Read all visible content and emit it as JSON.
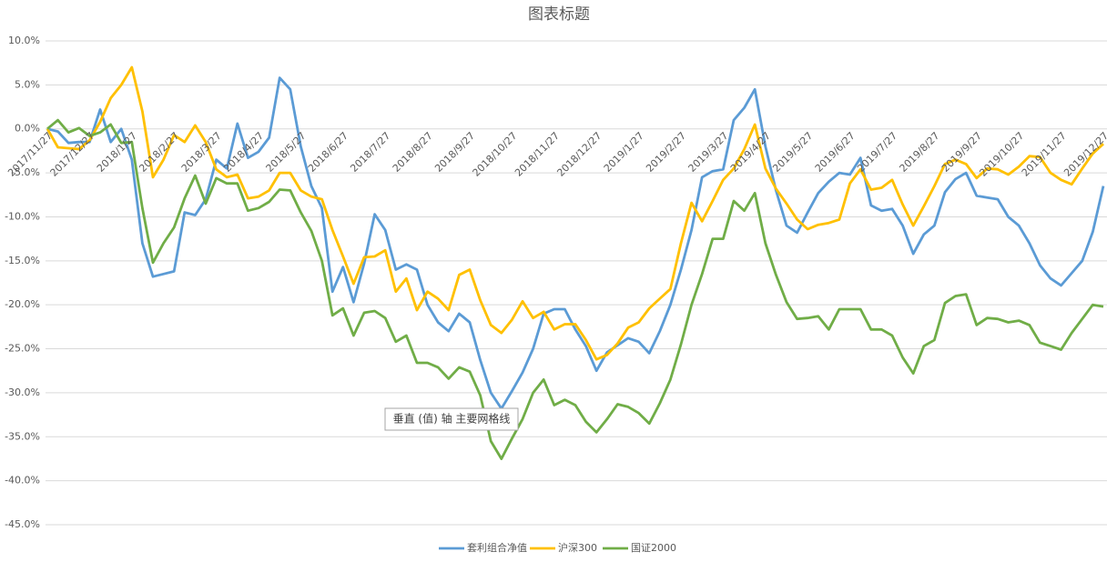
{
  "chart_data": {
    "type": "line",
    "title": "图表标题",
    "annotation": "垂直 (值) 轴 主要网格线",
    "categories": [
      "2017/11/27",
      null,
      null,
      null,
      "2017/12/27",
      null,
      null,
      null,
      "2018/1/27",
      null,
      null,
      null,
      "2018/2/27",
      null,
      null,
      null,
      "2018/3/27",
      null,
      null,
      null,
      "2018/4/27",
      null,
      null,
      null,
      "2018/5/27",
      null,
      null,
      null,
      "2018/6/27",
      null,
      null,
      null,
      "2018/7/27",
      null,
      null,
      null,
      "2018/8/27",
      null,
      null,
      null,
      "2018/9/27",
      null,
      null,
      null,
      "2018/10/27",
      null,
      null,
      null,
      "2018/11/27",
      null,
      null,
      null,
      "2018/12/27",
      null,
      null,
      null,
      "2019/1/27",
      null,
      null,
      null,
      "2019/2/27",
      null,
      null,
      null,
      "2019/3/27",
      null,
      null,
      null,
      "2019/4/27",
      null,
      null,
      null,
      "2019/5/27",
      null,
      null,
      null,
      "2019/6/27",
      null,
      null,
      null,
      "2019/7/27",
      null,
      null,
      null,
      "2019/8/27",
      null,
      null,
      null,
      "2019/9/27",
      null,
      null,
      null,
      "2019/10/27",
      null,
      null,
      null,
      "2019/11/27",
      null,
      null,
      null,
      "2019/12/27"
    ],
    "series": [
      {
        "name": "套利组合净值",
        "color": "#5b9bd5",
        "values": [
          0,
          -0.3,
          -1.6,
          -1.5,
          -1.5,
          2.2,
          -1.5,
          0,
          -3.5,
          -13,
          -16.8,
          -16.5,
          -16.2,
          -9.5,
          -9.8,
          -8,
          -3.5,
          -4.5,
          0.6,
          -3.3,
          -2.6,
          -1,
          5.8,
          4.5,
          -2,
          -6.5,
          -9,
          -18.5,
          -15.7,
          -19.7,
          -15.3,
          -9.7,
          -11.5,
          -16,
          -15.4,
          -16,
          -20,
          -22,
          -23,
          -21,
          -22,
          -26.3,
          -30,
          -31.8,
          -29.8,
          -27.7,
          -25,
          -21,
          -20.5,
          -20.5,
          -22.8,
          -24.7,
          -27.5,
          -25.4,
          -24.6,
          -23.8,
          -24.2,
          -25.5,
          -23,
          -20,
          -16,
          -11.5,
          -5.5,
          -4.8,
          -4.6,
          1,
          2.4,
          4.5,
          -2,
          -7,
          -11,
          -11.8,
          -9.5,
          -7.3,
          -6,
          -5,
          -5.2,
          -3.3,
          -8.7,
          -9.3,
          -9.1,
          -11,
          -14.2,
          -12,
          -11,
          -7.2,
          -5.7,
          -5,
          -7.6,
          -7.8,
          -8,
          -10,
          -11,
          -13,
          -15.5,
          -17,
          -17.8,
          -16.4,
          -15,
          -11.7,
          -6.5
        ]
      },
      {
        "name": "沪深300",
        "color": "#ffc000",
        "values": [
          0,
          -2.1,
          -2.2,
          -2.3,
          -1.3,
          0.8,
          3.5,
          5,
          7,
          2,
          -5.5,
          -3.5,
          -0.7,
          -1.5,
          0.4,
          -1.5,
          -4.6,
          -5.5,
          -5.2,
          -7.9,
          -7.7,
          -7,
          -5,
          -5,
          -7,
          -7.7,
          -8,
          -11.5,
          -14.5,
          -17.6,
          -14.6,
          -14.5,
          -13.8,
          -18.5,
          -17,
          -20.6,
          -18.5,
          -19.3,
          -20.6,
          -16.6,
          -16,
          -19.5,
          -22.3,
          -23.2,
          -21.7,
          -19.6,
          -21.5,
          -20.8,
          -22.8,
          -22.2,
          -22.2,
          -24,
          -26.2,
          -25.7,
          -24.4,
          -22.6,
          -22,
          -20.4,
          -19.3,
          -18.2,
          -13,
          -8.4,
          -10.5,
          -8.2,
          -5.8,
          -4.5,
          -2.3,
          0.5,
          -4.5,
          -6.8,
          -8.5,
          -10.3,
          -11.4,
          -10.9,
          -10.7,
          -10.3,
          -6.2,
          -4.6,
          -6.9,
          -6.7,
          -5.8,
          -8.6,
          -11,
          -8.8,
          -6.5,
          -4,
          -3.5,
          -4,
          -5.6,
          -4.5,
          -4.6,
          -5.2,
          -4.3,
          -3.1,
          -3.2,
          -5,
          -5.8,
          -6.3,
          -4.5,
          -2.8,
          -1.7
        ]
      },
      {
        "name": "国证2000",
        "color": "#70ad47",
        "values": [
          0,
          1,
          -0.4,
          0.1,
          -0.8,
          -0.4,
          0.5,
          -1.6,
          -1.5,
          -9,
          -15.2,
          -13,
          -11.2,
          -7.9,
          -5.3,
          -8.5,
          -5.6,
          -6.2,
          -6.2,
          -9.3,
          -9,
          -8.3,
          -6.9,
          -7,
          -9.5,
          -11.6,
          -15,
          -21.2,
          -20.4,
          -23.5,
          -20.9,
          -20.7,
          -21.5,
          -24.2,
          -23.5,
          -26.6,
          -26.6,
          -27.1,
          -28.4,
          -27.1,
          -27.6,
          -30.3,
          -35.5,
          -37.5,
          -35.2,
          -33,
          -30,
          -28.5,
          -31.4,
          -30.8,
          -31.4,
          -33.3,
          -34.5,
          -33,
          -31.3,
          -31.6,
          -32.3,
          -33.5,
          -31.2,
          -28.5,
          -24.5,
          -20,
          -16.5,
          -12.5,
          -12.5,
          -8.2,
          -9.3,
          -7.3,
          -13,
          -16.6,
          -19.7,
          -21.6,
          -21.5,
          -21.3,
          -22.8,
          -20.5,
          -20.5,
          -20.5,
          -22.8,
          -22.8,
          -23.5,
          -26,
          -27.8,
          -24.7,
          -24,
          -19.8,
          -19,
          -18.8,
          -22.3,
          -21.5,
          -21.6,
          -22,
          -21.8,
          -22.3,
          -24.3,
          -24.7,
          -25.1,
          -23.2,
          -21.6,
          -20,
          -20.2
        ]
      }
    ],
    "ylim": [
      -45,
      10
    ],
    "yticks": [
      {
        "value": 10,
        "label": "10.0%"
      },
      {
        "value": 5,
        "label": "5.0%"
      },
      {
        "value": 0,
        "label": "0.0%"
      },
      {
        "value": -5,
        "label": "-5.0%"
      },
      {
        "value": -10,
        "label": "-10.0%"
      },
      {
        "value": -15,
        "label": "-15.0%"
      },
      {
        "value": -20,
        "label": "-20.0%"
      },
      {
        "value": -25,
        "label": "-25.0%"
      },
      {
        "value": -30,
        "label": "-30.0%"
      },
      {
        "value": -35,
        "label": "-35.0%"
      },
      {
        "value": -40,
        "label": "-40.0%"
      },
      {
        "value": -45,
        "label": "-45.0%"
      }
    ],
    "grid": true,
    "legend": "bottom"
  }
}
